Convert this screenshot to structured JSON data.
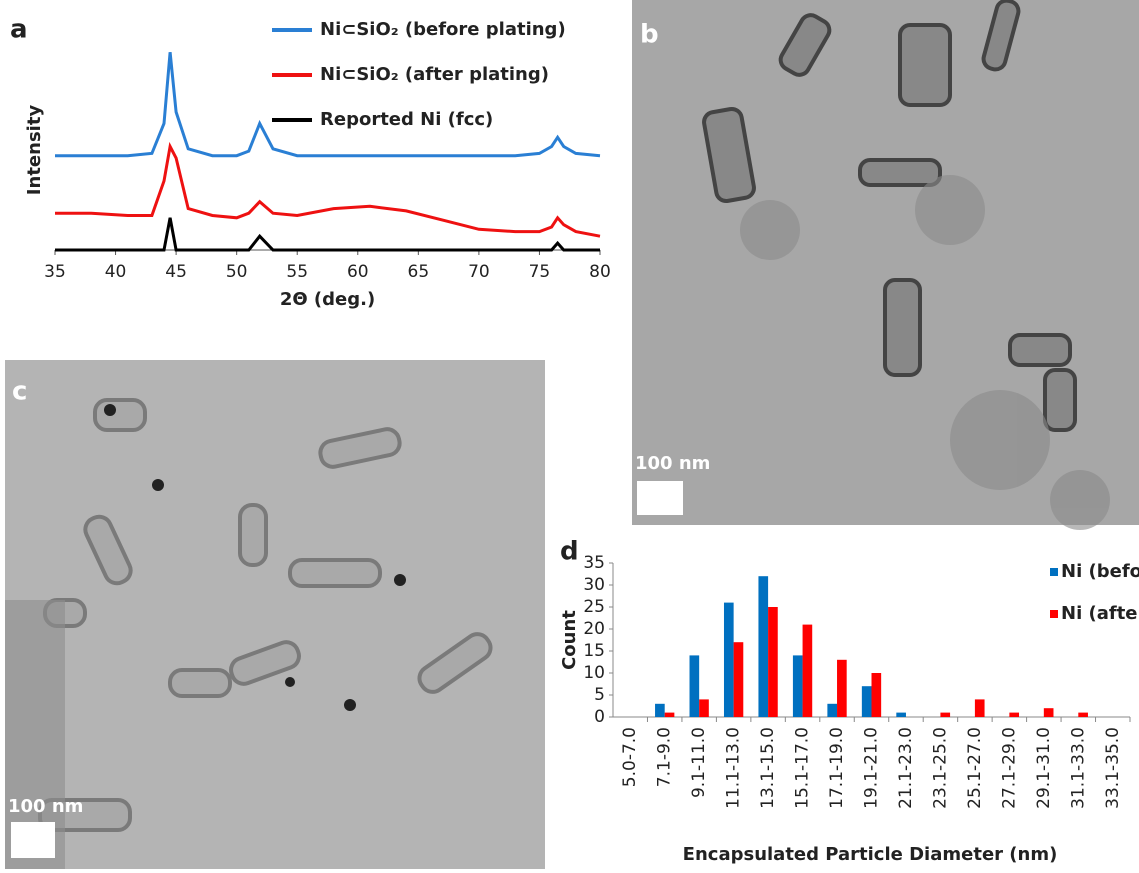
{
  "chart_data": [
    {
      "type": "line",
      "panel": "a",
      "xlabel": "2Θ (deg.)",
      "ylabel": "Intensity",
      "x": [
        35,
        38,
        41,
        43,
        44,
        44.5,
        45,
        46,
        48,
        50,
        51,
        51.9,
        53,
        55,
        58,
        61,
        64,
        67,
        70,
        73,
        75,
        76,
        76.5,
        77,
        78,
        80
      ],
      "series": [
        {
          "name": "Ni⊂SiO₂ (before plating)",
          "color": "#2a7fd4",
          "values": [
            41,
            41,
            41,
            42,
            55,
            86,
            60,
            44,
            41,
            41,
            43,
            55,
            44,
            41,
            41,
            41,
            41,
            41,
            41,
            41,
            42,
            45,
            49,
            45,
            42,
            41
          ]
        },
        {
          "name": "Ni⊂SiO₂ (after plating)",
          "color": "#ee1111",
          "values": [
            16,
            16,
            15,
            15,
            30,
            45,
            40,
            18,
            15,
            14,
            16,
            21,
            16,
            15,
            18,
            19,
            17,
            13,
            9,
            8,
            8,
            10,
            14,
            11,
            8,
            6
          ]
        },
        {
          "name": "Reported Ni (fcc)",
          "color": "#000000",
          "values": [
            0,
            0,
            0,
            0,
            0,
            14,
            0,
            0,
            0,
            0,
            0,
            6,
            0,
            0,
            0,
            0,
            0,
            0,
            0,
            0,
            0,
            0,
            3,
            0,
            0,
            0
          ]
        }
      ],
      "xlim": [
        35,
        80
      ],
      "xticks": [
        35,
        40,
        45,
        50,
        55,
        60,
        65,
        70,
        75,
        80
      ],
      "ylim": [
        0,
        100
      ]
    },
    {
      "type": "bar",
      "panel": "d",
      "xlabel": "Encapsulated Particle Diameter (nm)",
      "ylabel": "Count",
      "categories": [
        "5.0-7.0",
        "7.1-9.0",
        "9.1-11.0",
        "11.1-13.0",
        "13.1-15.0",
        "15.1-17.0",
        "17.1-19.0",
        "19.1-21.0",
        "21.1-23.0",
        "23.1-25.0",
        "25.1-27.0",
        "27.1-29.0",
        "29.1-31.0",
        "31.1-33.0",
        "33.1-35.0"
      ],
      "series": [
        {
          "name": "Ni (before plating)",
          "color": "#0070c0",
          "values": [
            0,
            3,
            14,
            26,
            32,
            14,
            3,
            7,
            1,
            0,
            0,
            0,
            0,
            0,
            0
          ]
        },
        {
          "name": "Ni (after plating)",
          "color": "#ff0000",
          "values": [
            0,
            1,
            4,
            17,
            25,
            21,
            13,
            10,
            0,
            1,
            4,
            1,
            2,
            1,
            0
          ]
        }
      ],
      "ylim": [
        0,
        35
      ],
      "yticks": [
        0,
        5,
        10,
        15,
        20,
        25,
        30,
        35
      ]
    }
  ],
  "images": [
    {
      "panel": "b",
      "scale": "100 nm"
    },
    {
      "panel": "c",
      "scale": "100 nm"
    }
  ]
}
